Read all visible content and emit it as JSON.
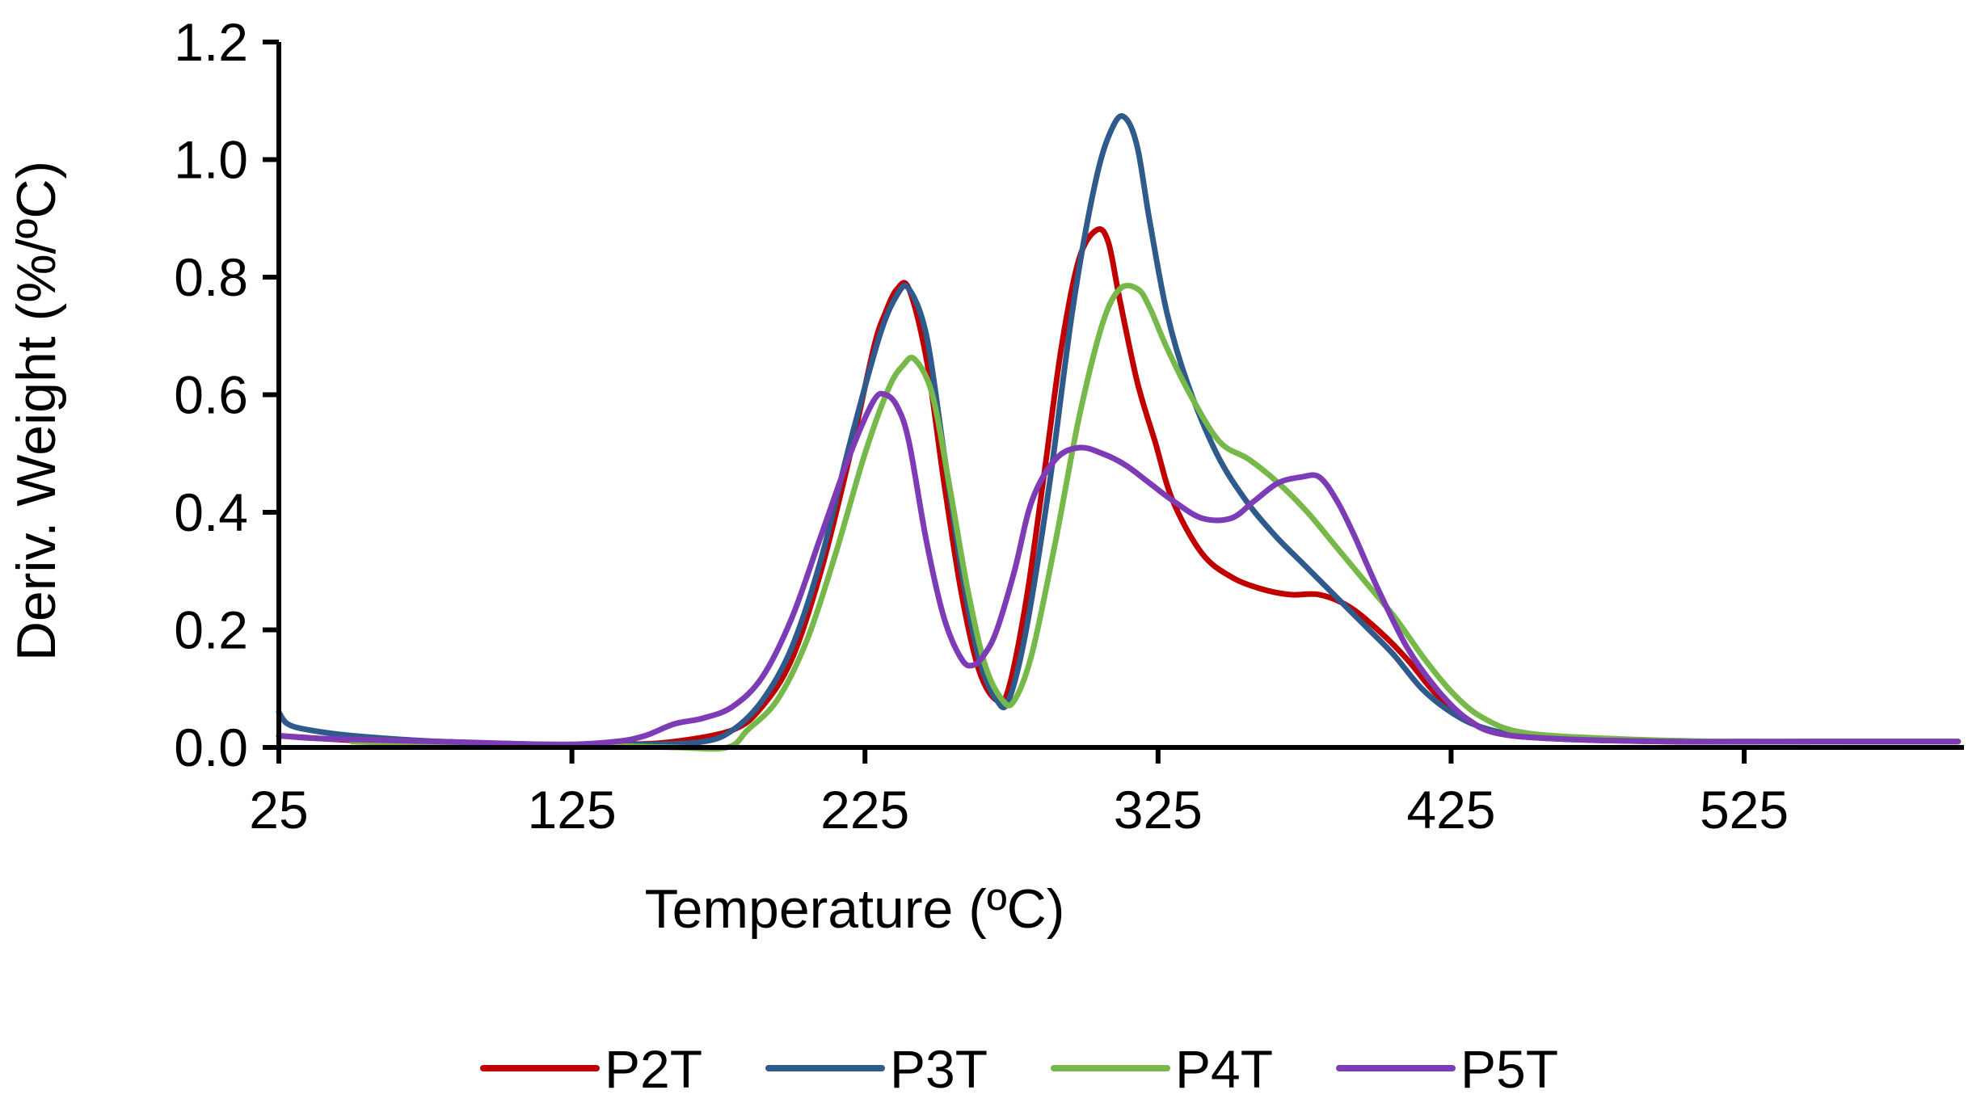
{
  "chart_data": {
    "type": "line",
    "title": "",
    "xlabel": "Temperature (ºC)",
    "ylabel": "Deriv. Weight (%/ºC)",
    "xlim": [
      25,
      600
    ],
    "ylim": [
      0.0,
      1.2
    ],
    "xticks": [
      25,
      125,
      225,
      325,
      425,
      525
    ],
    "xtick_labels": [
      "25",
      "125",
      "225",
      "325",
      "425",
      "525"
    ],
    "yticks": [
      0.0,
      0.2,
      0.4,
      0.6,
      0.8,
      1.0,
      1.2
    ],
    "ytick_labels": [
      "0.0",
      "0.2",
      "0.4",
      "0.6",
      "0.8",
      "1.0",
      "1.2"
    ],
    "grid": false,
    "legend_position": "bottom-center",
    "series": [
      {
        "name": "P2T",
        "color": "#c00000",
        "x": [
          25,
          40,
          60,
          100,
          140,
          160,
          180,
          190,
          200,
          210,
          220,
          228,
          232,
          236,
          240,
          246,
          252,
          258,
          264,
          270,
          274,
          280,
          286,
          292,
          298,
          304,
          308,
          312,
          318,
          324,
          330,
          340,
          350,
          360,
          370,
          380,
          390,
          400,
          410,
          420,
          430,
          440,
          460,
          500,
          550,
          598
        ],
        "y": [
          0.02,
          0.015,
          0.01,
          0.005,
          0.005,
          0.01,
          0.03,
          0.07,
          0.15,
          0.3,
          0.5,
          0.68,
          0.74,
          0.78,
          0.78,
          0.66,
          0.45,
          0.26,
          0.13,
          0.08,
          0.1,
          0.25,
          0.46,
          0.68,
          0.83,
          0.88,
          0.86,
          0.76,
          0.62,
          0.52,
          0.42,
          0.33,
          0.29,
          0.27,
          0.26,
          0.26,
          0.24,
          0.2,
          0.15,
          0.09,
          0.05,
          0.025,
          0.015,
          0.01,
          0.01,
          0.01
        ]
      },
      {
        "name": "P3T",
        "color": "#2f5b8c",
        "x": [
          25,
          28,
          35,
          50,
          80,
          120,
          150,
          170,
          180,
          190,
          200,
          210,
          220,
          230,
          236,
          240,
          246,
          252,
          258,
          264,
          270,
          274,
          280,
          288,
          296,
          304,
          310,
          314,
          318,
          322,
          328,
          335,
          345,
          355,
          365,
          375,
          385,
          395,
          405,
          415,
          425,
          435,
          450,
          480,
          520,
          560,
          598
        ],
        "y": [
          0.06,
          0.04,
          0.03,
          0.02,
          0.01,
          0.005,
          0.005,
          0.01,
          0.03,
          0.08,
          0.17,
          0.32,
          0.52,
          0.7,
          0.77,
          0.78,
          0.7,
          0.5,
          0.3,
          0.15,
          0.08,
          0.08,
          0.2,
          0.45,
          0.75,
          0.97,
          1.06,
          1.07,
          1.02,
          0.9,
          0.74,
          0.62,
          0.5,
          0.42,
          0.36,
          0.31,
          0.26,
          0.21,
          0.16,
          0.1,
          0.06,
          0.035,
          0.02,
          0.012,
          0.01,
          0.01,
          0.01
        ]
      },
      {
        "name": "P4T",
        "color": "#77b84a",
        "x": [
          50,
          80,
          120,
          160,
          178,
          185,
          195,
          205,
          215,
          225,
          233,
          238,
          242,
          248,
          254,
          260,
          266,
          272,
          276,
          282,
          290,
          298,
          306,
          312,
          318,
          322,
          328,
          336,
          346,
          356,
          366,
          376,
          386,
          396,
          406,
          416,
          426,
          436,
          450,
          480,
          520,
          560,
          598
        ],
        "y": [
          0.01,
          0.005,
          0.005,
          0.0,
          0.0,
          0.03,
          0.08,
          0.18,
          0.33,
          0.5,
          0.61,
          0.65,
          0.66,
          0.6,
          0.44,
          0.27,
          0.14,
          0.08,
          0.08,
          0.16,
          0.35,
          0.56,
          0.72,
          0.78,
          0.78,
          0.75,
          0.68,
          0.6,
          0.52,
          0.49,
          0.45,
          0.4,
          0.34,
          0.28,
          0.22,
          0.15,
          0.09,
          0.05,
          0.025,
          0.015,
          0.01,
          0.01,
          0.01
        ]
      },
      {
        "name": "P5T",
        "color": "#7d3bb5",
        "x": [
          25,
          40,
          80,
          120,
          140,
          150,
          160,
          170,
          180,
          190,
          200,
          210,
          220,
          228,
          232,
          236,
          240,
          246,
          252,
          258,
          262,
          266,
          270,
          276,
          282,
          290,
          298,
          306,
          314,
          322,
          330,
          340,
          350,
          358,
          366,
          374,
          380,
          386,
          392,
          400,
          410,
          420,
          430,
          440,
          460,
          500,
          550,
          598
        ],
        "y": [
          0.02,
          0.015,
          0.01,
          0.005,
          0.01,
          0.02,
          0.04,
          0.05,
          0.07,
          0.12,
          0.22,
          0.36,
          0.5,
          0.59,
          0.6,
          0.58,
          0.52,
          0.35,
          0.22,
          0.15,
          0.14,
          0.16,
          0.2,
          0.3,
          0.42,
          0.49,
          0.51,
          0.5,
          0.48,
          0.45,
          0.42,
          0.39,
          0.39,
          0.42,
          0.45,
          0.46,
          0.46,
          0.42,
          0.36,
          0.27,
          0.17,
          0.1,
          0.05,
          0.025,
          0.015,
          0.01,
          0.01,
          0.01
        ]
      }
    ]
  }
}
